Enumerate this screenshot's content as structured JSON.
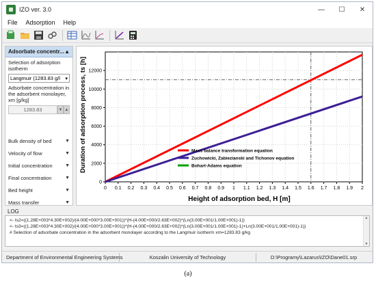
{
  "window": {
    "title": "IZO ver. 3.0",
    "controls": [
      "—",
      "☐",
      "✕"
    ]
  },
  "menu": [
    "File",
    "Adsorption",
    "Help"
  ],
  "toolbar_icons": [
    "new-file-icon",
    "open-folder-icon",
    "save-icon",
    "link-icon",
    "table-icon",
    "chart-curve-icon",
    "chart-line-icon",
    "chart-purple-icon",
    "calculator-icon"
  ],
  "sidebar": {
    "header": "Adsorbate concentr...",
    "isotherm_label": "Selection of adsorption isotherm",
    "isotherm_value": "Langmuir (1283.83 g/l",
    "concentration_label": "Adsorbate concentration in the adsorbent monolayer, xm [g/kg]",
    "concentration_value": "1283.83",
    "sections": [
      "Bulk density of bed",
      "Velocity of flow",
      "Initial concentration",
      "Final concentration",
      "Bed height",
      "Mass transfer"
    ]
  },
  "chart_data": {
    "type": "line",
    "xlabel": "Height of adsorption bed, H [m]",
    "ylabel": "Duration of adsorption process, ts [h]",
    "xlim": [
      0,
      2
    ],
    "ylim": [
      0,
      14000
    ],
    "x_ticks": [
      "0",
      "0.1",
      "0.2",
      "0.3",
      "0.4",
      "0.5",
      "0.6",
      "0.7",
      "0.8",
      "0.9",
      "1",
      "1.1",
      "1.2",
      "1.3",
      "1.4",
      "1.5",
      "1.6",
      "1.7",
      "1.8",
      "1.9",
      "2"
    ],
    "y_ticks": [
      "0",
      "2000",
      "4000",
      "6000",
      "8000",
      "10000",
      "12000"
    ],
    "series": [
      {
        "name": "Mass balance transformation equation",
        "color": "#ff0000",
        "x": [
          0,
          2
        ],
        "y": [
          0,
          13700
        ]
      },
      {
        "name": "Zuchowicki, Zabiezianski and Tichonov equation",
        "color": "#3c1e96",
        "x": [
          0,
          2
        ],
        "y": [
          0,
          9200
        ]
      },
      {
        "name": "Bohart-Adams equation",
        "color": "#00a000",
        "x": [],
        "y": []
      }
    ],
    "reference": {
      "x": 1.6,
      "y": 11000
    },
    "grid": true,
    "legend": "lower-center"
  },
  "log": {
    "label": "LOG",
    "lines": [
      "<- ts2=((1.28E+003*4.30E+002)/(4.00E+000*3.00E+001))*(H-(4.00E+000/2.63E+002)*(Ln(3.00E+001/1.00E+001)-1))",
      "<- ts3=((1.28E+003*4.30E+002)/(4.00E+000*3.00E+001))*(H-(4.00E+000/2.63E+002)*(Ln(3.00E+001/1.00E+001)-1)+Ln(3.00E+001/1.00E+001)-1))",
      "# Selection of adsorbate concentration in the adsorbent monolayer according to the Langmuir isotherm xm=1283.83 g/kg"
    ]
  },
  "status": [
    "Department of Environmental Engineering Systems",
    "Koszalin University of Technology",
    "D:\\Programy\\Lazarus\\IZO\\Dane01.srp"
  ],
  "caption": "(a)"
}
